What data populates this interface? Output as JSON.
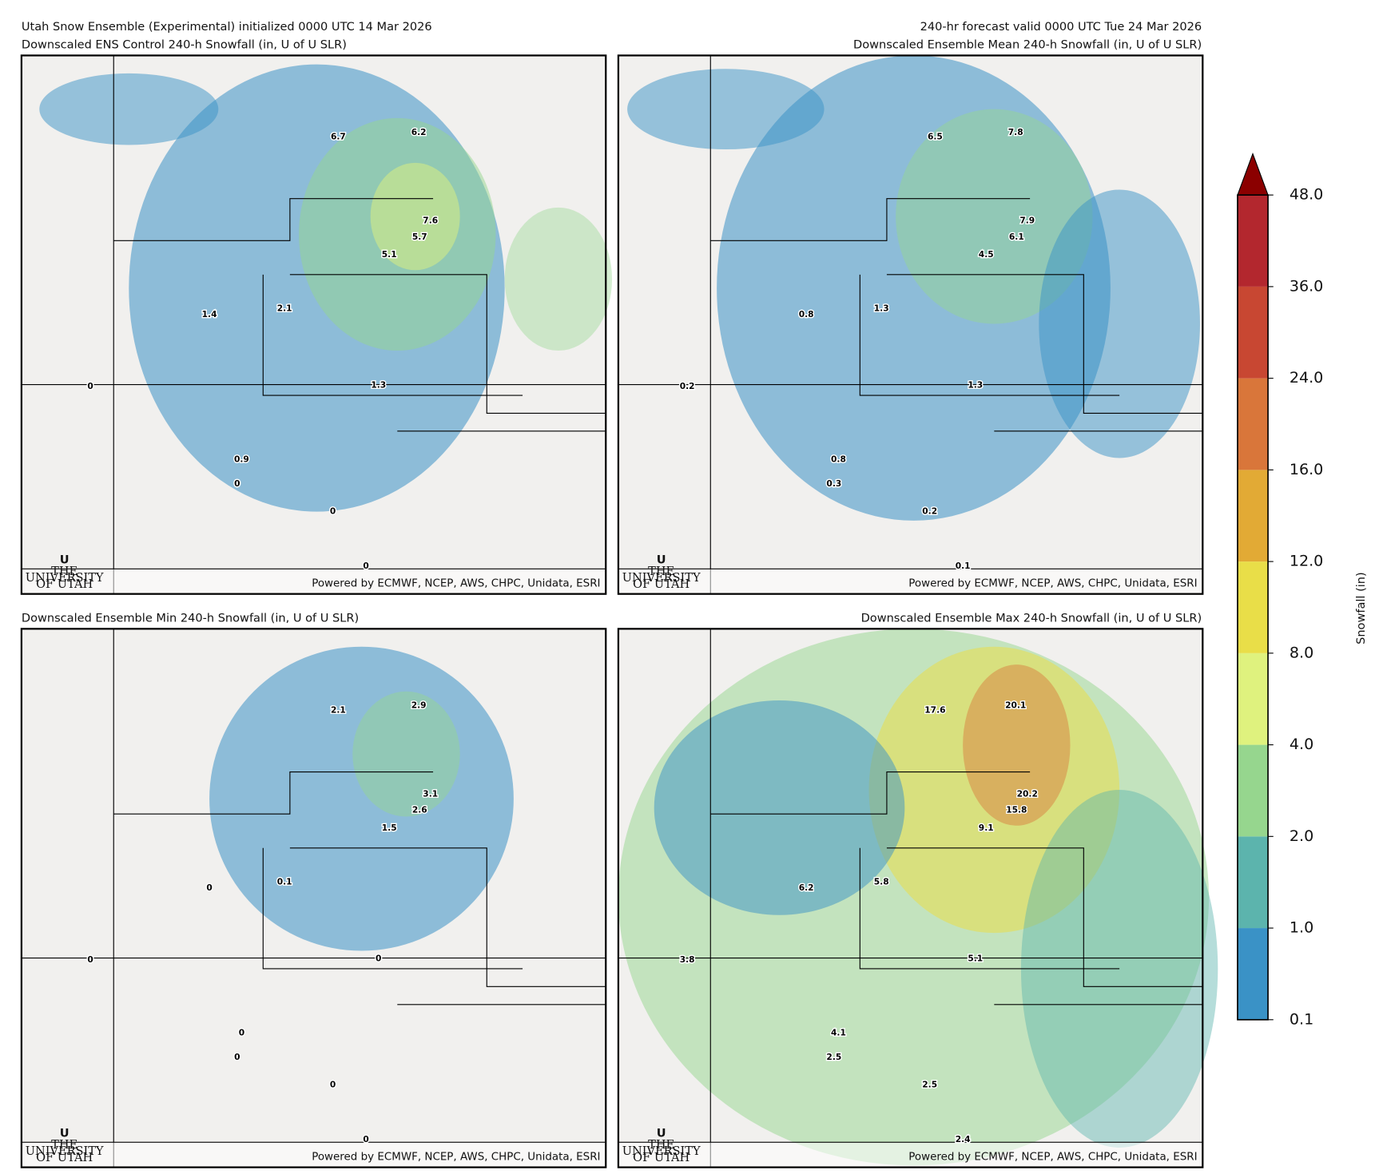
{
  "header": {
    "title_left": "Utah Snow Ensemble (Experimental) initialized 0000 UTC 14 Mar 2026",
    "title_right": "240-hr forecast valid 0000 UTC Tue 24 Mar 2026"
  },
  "panels": [
    {
      "title": "Downscaled ENS Control 240-h Snowfall (in, U of U SLR)",
      "labels": [
        "6.7",
        "6.2",
        "7.6",
        "5.7",
        "5.1",
        "2.1",
        "1.4",
        "1.3",
        "0",
        "0.9",
        "0",
        "0",
        "0"
      ]
    },
    {
      "title": "Downscaled Ensemble Mean 240-h Snowfall (in, U of U SLR)",
      "labels": [
        "6.5",
        "7.8",
        "7.9",
        "6.1",
        "4.5",
        "1.3",
        "0.8",
        "1.3",
        "0.2",
        "0.8",
        "0.3",
        "0.2",
        "0.1"
      ]
    },
    {
      "title": "Downscaled Ensemble Min 240-h Snowfall (in, U of U SLR)",
      "labels": [
        "2.1",
        "2.9",
        "3.1",
        "2.6",
        "1.5",
        "0.1",
        "0",
        "0",
        "0",
        "0",
        "0",
        "0",
        "0"
      ]
    },
    {
      "title": "Downscaled Ensemble Max 240-h Snowfall (in, U of U SLR)",
      "labels": [
        "17.6",
        "20.1",
        "20.2",
        "15.8",
        "9.1",
        "5.8",
        "6.2",
        "5.1",
        "3.8",
        "4.1",
        "2.5",
        "2.5",
        "2.4"
      ]
    }
  ],
  "credit": "Powered by ECMWF, NCEP, AWS, CHPC, Unidata, ESRI",
  "logo": {
    "letter": "U",
    "lines": [
      "THE",
      "UNIVERSITY",
      "OF UTAH"
    ]
  },
  "colorbar": {
    "label": "Snowfall (in)",
    "ticks": [
      0.1,
      {
        "value": 1,
        "label": "1.0"
      },
      {
        "value": 2,
        "label": "2.0"
      },
      {
        "value": 4,
        "label": "4.0"
      },
      {
        "value": 8,
        "label": "8.0"
      },
      {
        "value": 12,
        "label": "12.0"
      },
      {
        "value": 16,
        "label": "16.0"
      },
      {
        "value": 24,
        "label": "24.0"
      },
      {
        "value": 36,
        "label": "36.0"
      },
      {
        "value": 48,
        "label": "48.0"
      }
    ],
    "colors": [
      "#3a92c6",
      "#5cb4ad",
      "#96d68e",
      "#dff27e",
      "#e9de48",
      "#e2aa35",
      "#d9763a",
      "#c84732",
      "#b3272e"
    ],
    "extend_color": "#8b0000"
  }
}
